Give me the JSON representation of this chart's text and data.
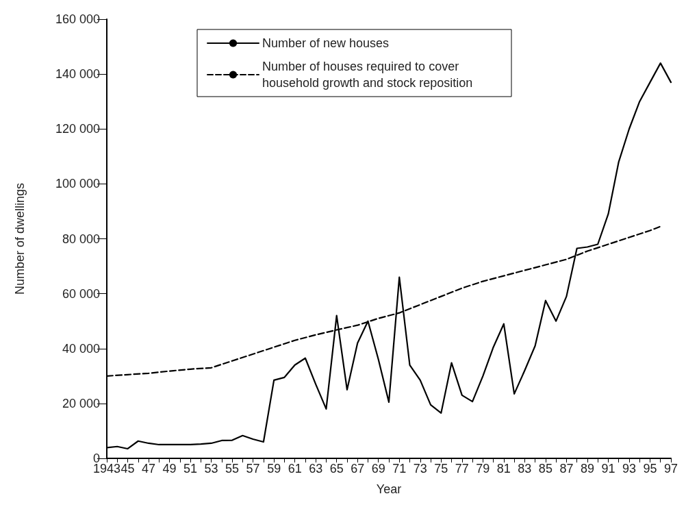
{
  "chart_data": {
    "type": "line",
    "xlabel": "Year",
    "ylabel": "Number of dwellings",
    "xlim": [
      1943,
      1997
    ],
    "ylim": [
      0,
      160000
    ],
    "xticks": [
      1943,
      {
        "value": 1944,
        "label": null
      },
      {
        "value": 1945,
        "label": "45"
      },
      {
        "value": 1946,
        "label": null
      },
      {
        "value": 1947,
        "label": "47"
      },
      {
        "value": 1948,
        "label": null
      },
      {
        "value": 1949,
        "label": "49"
      },
      {
        "value": 1950,
        "label": null
      },
      {
        "value": 1951,
        "label": "51"
      },
      {
        "value": 1952,
        "label": null
      },
      {
        "value": 1953,
        "label": "53"
      },
      {
        "value": 1954,
        "label": null
      },
      {
        "value": 1955,
        "label": "55"
      },
      {
        "value": 1956,
        "label": null
      },
      {
        "value": 1957,
        "label": "57"
      },
      {
        "value": 1958,
        "label": null
      },
      {
        "value": 1959,
        "label": "59"
      },
      {
        "value": 1960,
        "label": null
      },
      {
        "value": 1961,
        "label": "61"
      },
      {
        "value": 1962,
        "label": null
      },
      {
        "value": 1963,
        "label": "63"
      },
      {
        "value": 1964,
        "label": null
      },
      {
        "value": 1965,
        "label": "65"
      },
      {
        "value": 1966,
        "label": null
      },
      {
        "value": 1967,
        "label": "67"
      },
      {
        "value": 1968,
        "label": null
      },
      {
        "value": 1969,
        "label": "69"
      },
      {
        "value": 1970,
        "label": null
      },
      {
        "value": 1971,
        "label": "71"
      },
      {
        "value": 1972,
        "label": null
      },
      {
        "value": 1973,
        "label": "73"
      },
      {
        "value": 1974,
        "label": null
      },
      {
        "value": 1975,
        "label": "75"
      },
      {
        "value": 1976,
        "label": null
      },
      {
        "value": 1977,
        "label": "77"
      },
      {
        "value": 1978,
        "label": null
      },
      {
        "value": 1979,
        "label": "79"
      },
      {
        "value": 1980,
        "label": null
      },
      {
        "value": 1981,
        "label": "81"
      },
      {
        "value": 1982,
        "label": null
      },
      {
        "value": 1983,
        "label": "83"
      },
      {
        "value": 1984,
        "label": null
      },
      {
        "value": 1985,
        "label": "85"
      },
      {
        "value": 1986,
        "label": null
      },
      {
        "value": 1987,
        "label": "87"
      },
      {
        "value": 1988,
        "label": null
      },
      {
        "value": 1989,
        "label": "89"
      },
      {
        "value": 1990,
        "label": null
      },
      {
        "value": 1991,
        "label": "91"
      },
      {
        "value": 1992,
        "label": null
      },
      {
        "value": 1993,
        "label": "93"
      },
      {
        "value": 1994,
        "label": null
      },
      {
        "value": 1995,
        "label": "95"
      },
      {
        "value": 1996,
        "label": null
      },
      {
        "value": 1997,
        "label": "97"
      }
    ],
    "yticks": [
      0,
      {
        "value": 20000,
        "label": "20 000"
      },
      {
        "value": 40000,
        "label": "40 000"
      },
      {
        "value": 60000,
        "label": "60 000"
      },
      {
        "value": 80000,
        "label": "80 000"
      },
      {
        "value": 100000,
        "label": "100 000"
      },
      {
        "value": 120000,
        "label": "120 000"
      },
      {
        "value": 140000,
        "label": "140 000"
      },
      {
        "value": 160000,
        "label": "160 000"
      }
    ],
    "grid": false,
    "legend": "top",
    "marker": "none",
    "series": [
      {
        "name": "Number of new houses",
        "color": "#000000",
        "line_style": "solid",
        "x": [
          1943,
          1944,
          1945,
          1946,
          1947,
          1948,
          1949,
          1950,
          1951,
          1952,
          1953,
          1954,
          1955,
          1956,
          1957,
          1958,
          1959,
          1960,
          1961,
          1962,
          1963,
          1964,
          1965,
          1966,
          1967,
          1968,
          1969,
          1970,
          1971,
          1972,
          1973,
          1974,
          1975,
          1976,
          1977,
          1978,
          1979,
          1980,
          1981,
          1982,
          1983,
          1984,
          1985,
          1986,
          1987,
          1988,
          1989,
          1990,
          1991,
          1992,
          1993,
          1994,
          1995,
          1996,
          1997
        ],
        "values": [
          3900,
          4300,
          3500,
          6300,
          5500,
          5000,
          5000,
          5000,
          5000,
          5200,
          5500,
          6500,
          6600,
          8300,
          7000,
          6000,
          28500,
          29500,
          34000,
          36500,
          27000,
          18000,
          52000,
          25000,
          42000,
          50000,
          36000,
          20500,
          66000,
          34000,
          28500,
          19500,
          16500,
          34800,
          23000,
          20700,
          30000,
          40500,
          49000,
          23500,
          32000,
          41000,
          57500,
          50000,
          59000,
          76500,
          77000,
          78000,
          89000,
          108000,
          120000,
          130000,
          137000,
          144000,
          137000
        ]
      },
      {
        "name": "Number of houses required to cover household growth and stock reposition",
        "color": "#000000",
        "line_style": "dashed",
        "x": [
          1943,
          1945,
          1947,
          1949,
          1951,
          1953,
          1955,
          1957,
          1959,
          1961,
          1963,
          1965,
          1967,
          1969,
          1971,
          1973,
          1975,
          1977,
          1979,
          1981,
          1983,
          1985,
          1987,
          1989,
          1991,
          1993,
          1995,
          1996
        ],
        "values": [
          30000,
          30500,
          31000,
          31800,
          32500,
          33000,
          35500,
          38000,
          40500,
          43000,
          45000,
          46800,
          48500,
          51000,
          53000,
          56000,
          59000,
          62000,
          64500,
          66500,
          68500,
          70500,
          72500,
          75500,
          78000,
          80500,
          83000,
          84500
        ]
      }
    ]
  }
}
